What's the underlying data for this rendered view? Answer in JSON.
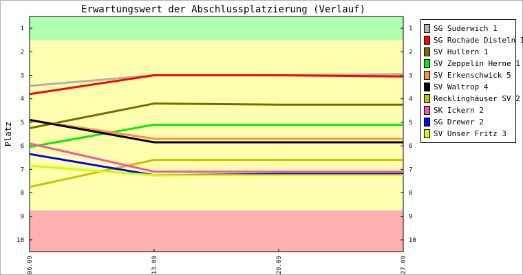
{
  "chart_data": {
    "type": "line",
    "title": "Erwartungswert der Abschlussplatzierung (Verlauf)",
    "ylabel": "Platz",
    "xlabel": "",
    "x": [
      "06.09",
      "13.09",
      "20.09",
      "27.09"
    ],
    "ylim": [
      0.5,
      10.5
    ],
    "yticks": [
      1,
      2,
      3,
      4,
      5,
      6,
      7,
      8,
      9,
      10
    ],
    "y_inverted": true,
    "grid": false,
    "legend_position": "right",
    "bands": [
      {
        "from": 0.5,
        "to": 1.5,
        "color": "#b0ffb0"
      },
      {
        "from": 1.5,
        "to": 8.75,
        "color": "#ffffb0"
      },
      {
        "from": 8.75,
        "to": 10.5,
        "color": "#ffb0b0"
      }
    ],
    "series": [
      {
        "name": "SG Suderwich 1",
        "color": "#b0b0b0",
        "values": [
          3.45,
          3.0,
          3.0,
          2.95
        ]
      },
      {
        "name": "SG Rochade Disteln 1",
        "color": "#ff0000",
        "values": [
          3.8,
          3.0,
          3.0,
          3.05
        ]
      },
      {
        "name": "SV Hullern 1",
        "color": "#7a6a00",
        "values": [
          5.25,
          4.2,
          4.25,
          4.25
        ]
      },
      {
        "name": "SV Zeppelin Herne 1",
        "color": "#00ee00",
        "values": [
          6.05,
          5.1,
          5.1,
          5.1
        ]
      },
      {
        "name": "SV Erkenschwick 5",
        "color": "#ff8c40",
        "values": [
          4.9,
          5.7,
          5.7,
          5.7
        ]
      },
      {
        "name": "SV Waltrop 4",
        "color": "#000000",
        "values": [
          4.9,
          5.85,
          5.85,
          5.85
        ]
      },
      {
        "name": "Recklinghäuser SV 2",
        "color": "#c8c000",
        "values": [
          7.75,
          6.6,
          6.6,
          6.6
        ]
      },
      {
        "name": "SK Ickern 2",
        "color": "#ff4fa0",
        "values": [
          5.9,
          7.1,
          7.1,
          7.1
        ]
      },
      {
        "name": "SG Drewer 2",
        "color": "#0000ff",
        "values": [
          6.35,
          7.25,
          7.2,
          7.2
        ]
      },
      {
        "name": "SV Unser Fritz 3",
        "color": "#ccff00",
        "values": [
          6.85,
          7.25,
          7.25,
          7.25
        ]
      }
    ]
  }
}
